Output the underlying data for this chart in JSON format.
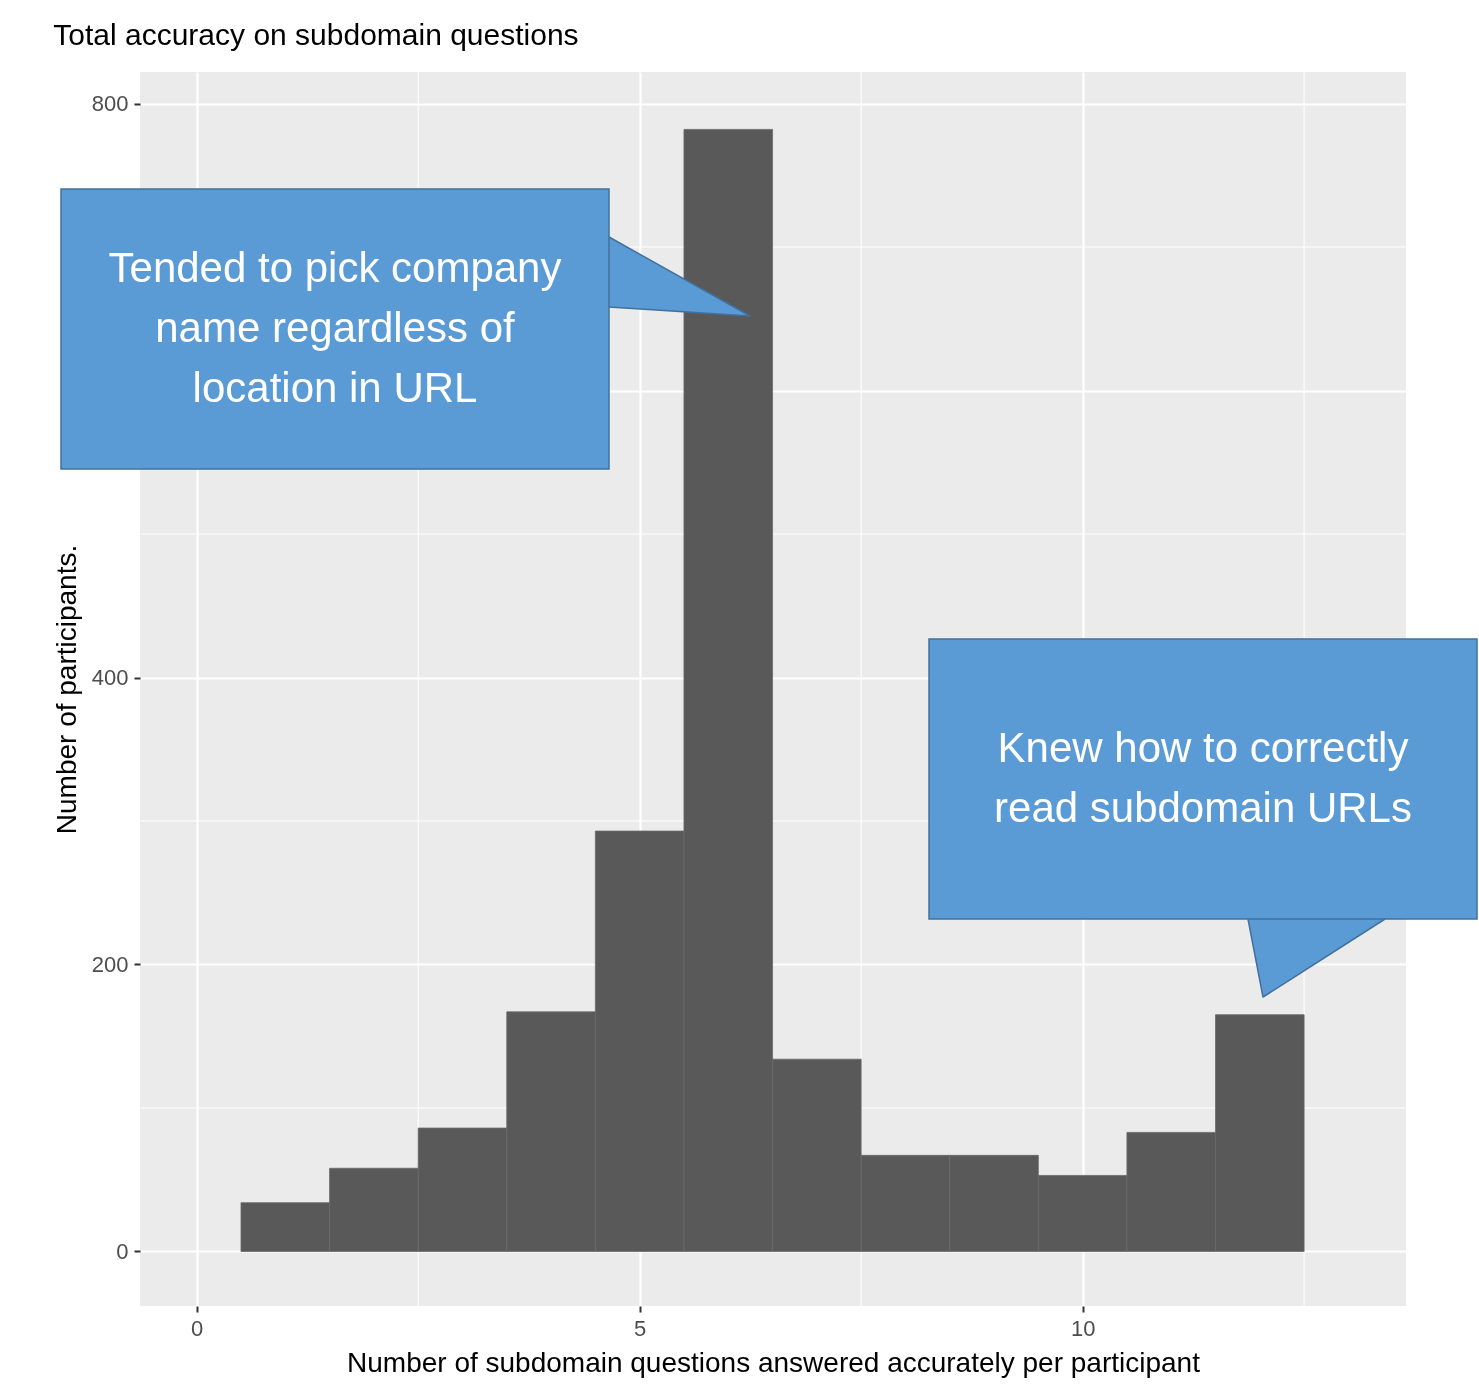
{
  "chart_data": {
    "type": "histogram",
    "title": "Total accuracy on subdomain questions",
    "xlabel": "Number of subdomain questions answered accurately per participant",
    "ylabel": "Number of participants.",
    "bins": [
      0.5,
      1.5,
      2.5,
      3.5,
      4.5,
      5.5,
      6.5,
      7.5,
      8.5,
      9.5,
      10.5,
      11.5,
      12.5
    ],
    "values": [
      34,
      58,
      86,
      167,
      293,
      782,
      134,
      67,
      67,
      53,
      83,
      165
    ],
    "color": "#595959",
    "xlim": [
      -0.64,
      13.65
    ],
    "ylim": [
      -38,
      822
    ],
    "xticks": [
      0,
      5,
      10
    ],
    "yticks": [
      0,
      200,
      400,
      {
        "value": 600,
        "label": null
      },
      800
    ],
    "grid": true,
    "annotations": [
      "Tended to pick company name regardless of location in URL",
      "Knew how to correctly read subdomain URLs"
    ]
  }
}
